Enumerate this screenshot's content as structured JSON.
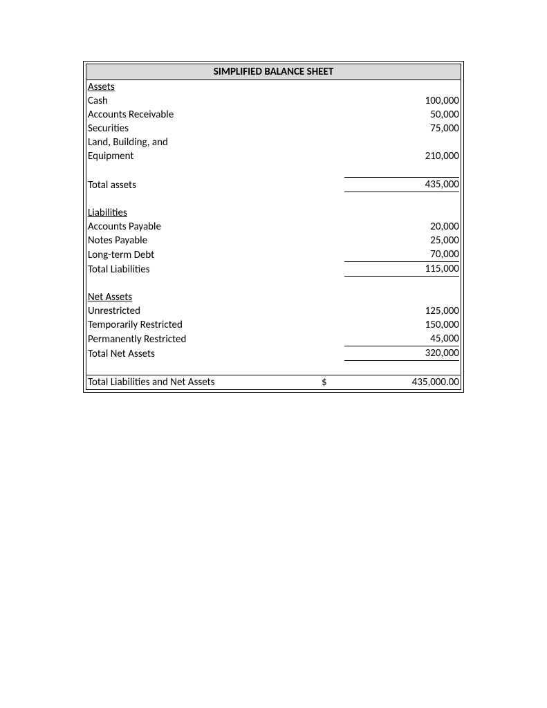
{
  "title": "SIMPLIFIED BALANCE SHEET",
  "sections": {
    "assets": {
      "header": "Assets",
      "items": [
        {
          "label": "Cash",
          "value": "100,000"
        },
        {
          "label": "Accounts Receivable",
          "value": "50,000"
        },
        {
          "label": "Securities",
          "value": "75,000"
        },
        {
          "label": "Land, Building, and",
          "value": ""
        },
        {
          "label": "Equipment",
          "value": "210,000"
        }
      ],
      "total": {
        "label": "Total assets",
        "value": "435,000"
      }
    },
    "liabilities": {
      "header": "Liabilities",
      "items": [
        {
          "label": "Accounts Payable",
          "value": "20,000"
        },
        {
          "label": "Notes Payable",
          "value": "25,000"
        },
        {
          "label": "Long-term Debt",
          "value": "70,000"
        }
      ],
      "total": {
        "label": "Total Liabilities",
        "value": "115,000"
      }
    },
    "netassets": {
      "header": "Net Assets",
      "items": [
        {
          "label": "Unrestricted",
          "value": "125,000"
        },
        {
          "label": "Temporarily Restricted",
          "value": "150,000"
        },
        {
          "label": "Permanently Restricted",
          "value": "45,000"
        }
      ],
      "total": {
        "label": "Total Net Assets",
        "value": "320,000"
      }
    },
    "grandtotal": {
      "label": "Total Liabilities and Net Assets",
      "currency": "$",
      "value": "435,000.00"
    }
  },
  "colors": {
    "header_bg": "#d9d9d9",
    "border": "#000000",
    "text": "#000000",
    "background": "#ffffff"
  }
}
